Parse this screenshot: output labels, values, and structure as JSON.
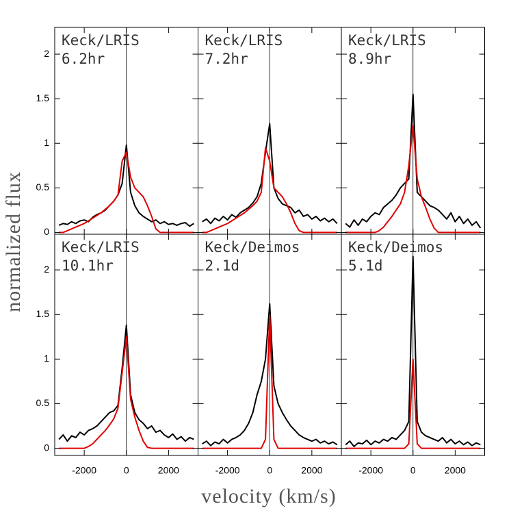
{
  "figure": {
    "xlabel": "velocity (km/s)",
    "ylabel": "normalized flux"
  },
  "chart_data": [
    {
      "type": "line",
      "title": "Keck/LRIS",
      "subtitle": "6.2hr",
      "x": [
        -3200,
        -3000,
        -2800,
        -2600,
        -2400,
        -2200,
        -2000,
        -1800,
        -1600,
        -1400,
        -1200,
        -1000,
        -800,
        -600,
        -400,
        -200,
        0,
        200,
        400,
        600,
        800,
        1000,
        1200,
        1400,
        1600,
        1800,
        2000,
        2200,
        2400,
        2600,
        2800,
        3000,
        3200
      ],
      "xlim": [
        -3400,
        3400
      ],
      "xticks": [
        -2000,
        0,
        2000
      ],
      "ylim": [
        -0.02,
        2.3
      ],
      "yticks": [
        0,
        0.5,
        1,
        1.5,
        2
      ],
      "series": [
        {
          "color": "#000000",
          "values": [
            0.08,
            0.1,
            0.09,
            0.12,
            0.1,
            0.13,
            0.14,
            0.12,
            0.17,
            0.2,
            0.22,
            0.25,
            0.3,
            0.35,
            0.42,
            0.55,
            0.98,
            0.45,
            0.3,
            0.22,
            0.18,
            0.15,
            0.12,
            0.14,
            0.1,
            0.12,
            0.09,
            0.1,
            0.08,
            0.1,
            0.11,
            0.07,
            0.1
          ]
        },
        {
          "color": "#e00000",
          "values": [
            0,
            0,
            0.02,
            0.04,
            0.06,
            0.08,
            0.1,
            0.13,
            0.16,
            0.19,
            0.22,
            0.26,
            0.3,
            0.35,
            0.42,
            0.8,
            0.9,
            0.62,
            0.5,
            0.45,
            0.4,
            0.3,
            0.18,
            0.04,
            0,
            0,
            0,
            0,
            0,
            0,
            0,
            0,
            0
          ]
        }
      ]
    },
    {
      "type": "line",
      "title": "Keck/LRIS",
      "subtitle": "7.2hr",
      "x": [
        -3200,
        -3000,
        -2800,
        -2600,
        -2400,
        -2200,
        -2000,
        -1800,
        -1600,
        -1400,
        -1200,
        -1000,
        -800,
        -600,
        -400,
        -200,
        0,
        200,
        400,
        600,
        800,
        1000,
        1200,
        1400,
        1600,
        1800,
        2000,
        2200,
        2400,
        2600,
        2800,
        3000,
        3200
      ],
      "xlim": [
        -3400,
        3400
      ],
      "xticks": [
        -2000,
        0,
        2000
      ],
      "ylim": [
        -0.02,
        2.3
      ],
      "yticks": [
        0,
        0.5,
        1,
        1.5,
        2
      ],
      "series": [
        {
          "color": "#000000",
          "values": [
            0.12,
            0.15,
            0.1,
            0.16,
            0.13,
            0.18,
            0.14,
            0.2,
            0.17,
            0.22,
            0.25,
            0.28,
            0.33,
            0.4,
            0.55,
            0.9,
            1.22,
            0.5,
            0.38,
            0.32,
            0.3,
            0.28,
            0.22,
            0.25,
            0.18,
            0.2,
            0.15,
            0.18,
            0.13,
            0.16,
            0.12,
            0.15,
            0.1
          ]
        },
        {
          "color": "#e00000",
          "values": [
            0,
            0,
            0.02,
            0.04,
            0.06,
            0.08,
            0.1,
            0.13,
            0.16,
            0.19,
            0.22,
            0.26,
            0.3,
            0.35,
            0.45,
            0.95,
            0.8,
            0.5,
            0.45,
            0.4,
            0.32,
            0.22,
            0.1,
            0.02,
            0,
            0,
            0,
            0,
            0,
            0,
            0,
            0,
            0
          ]
        }
      ]
    },
    {
      "type": "line",
      "title": "Keck/LRIS",
      "subtitle": "8.9hr",
      "x": [
        -3200,
        -3000,
        -2800,
        -2600,
        -2400,
        -2200,
        -2000,
        -1800,
        -1600,
        -1400,
        -1200,
        -1000,
        -800,
        -600,
        -400,
        -200,
        0,
        200,
        400,
        600,
        800,
        1000,
        1200,
        1400,
        1600,
        1800,
        2000,
        2200,
        2400,
        2600,
        2800,
        3000,
        3200
      ],
      "xlim": [
        -3400,
        3400
      ],
      "xticks": [
        -2000,
        0,
        2000
      ],
      "ylim": [
        -0.02,
        2.3
      ],
      "yticks": [
        0,
        0.5,
        1,
        1.5,
        2
      ],
      "series": [
        {
          "color": "#000000",
          "values": [
            0.1,
            0.06,
            0.14,
            0.08,
            0.15,
            0.12,
            0.18,
            0.22,
            0.2,
            0.28,
            0.32,
            0.36,
            0.42,
            0.5,
            0.55,
            0.6,
            1.55,
            0.45,
            0.4,
            0.35,
            0.3,
            0.28,
            0.25,
            0.2,
            0.15,
            0.22,
            0.12,
            0.18,
            0.1,
            0.15,
            0.08,
            0.12,
            0.05
          ]
        },
        {
          "color": "#e00000",
          "values": [
            0,
            0,
            0,
            0,
            0,
            0,
            0,
            0,
            0.02,
            0.06,
            0.12,
            0.18,
            0.25,
            0.32,
            0.45,
            0.75,
            1.2,
            0.6,
            0.4,
            0.28,
            0.15,
            0.05,
            0,
            0,
            0,
            0,
            0,
            0,
            0,
            0,
            0,
            0,
            0
          ]
        }
      ]
    },
    {
      "type": "line",
      "title": "Keck/LRIS",
      "subtitle": "10.1hr",
      "x": [
        -3200,
        -3000,
        -2800,
        -2600,
        -2400,
        -2200,
        -2000,
        -1800,
        -1600,
        -1400,
        -1200,
        -1000,
        -800,
        -600,
        -400,
        -200,
        0,
        200,
        400,
        600,
        800,
        1000,
        1200,
        1400,
        1600,
        1800,
        2000,
        2200,
        2400,
        2600,
        2800,
        3000,
        3200
      ],
      "xlim": [
        -3400,
        3400
      ],
      "xticks": [
        -2000,
        0,
        2000
      ],
      "ylim": [
        -0.08,
        2.4
      ],
      "yticks": [
        0,
        0.5,
        1,
        1.5,
        2
      ],
      "series": [
        {
          "color": "#000000",
          "values": [
            0.1,
            0.15,
            0.08,
            0.14,
            0.12,
            0.18,
            0.15,
            0.2,
            0.22,
            0.25,
            0.3,
            0.35,
            0.4,
            0.42,
            0.48,
            0.9,
            1.38,
            0.6,
            0.4,
            0.32,
            0.28,
            0.22,
            0.25,
            0.18,
            0.2,
            0.15,
            0.12,
            0.16,
            0.1,
            0.13,
            0.08,
            0.12,
            0.1
          ]
        },
        {
          "color": "#e00000",
          "values": [
            0,
            0,
            0,
            0,
            0,
            0,
            0,
            0.02,
            0.05,
            0.1,
            0.15,
            0.2,
            0.26,
            0.33,
            0.45,
            0.85,
            1.25,
            0.55,
            0.35,
            0.2,
            0.08,
            0.01,
            0,
            0,
            0,
            0,
            0,
            0,
            0,
            0,
            0,
            0,
            0
          ]
        }
      ]
    },
    {
      "type": "line",
      "title": "Keck/Deimos",
      "subtitle": "2.1d",
      "x": [
        -3200,
        -3000,
        -2800,
        -2600,
        -2400,
        -2200,
        -2000,
        -1800,
        -1600,
        -1400,
        -1200,
        -1000,
        -800,
        -600,
        -400,
        -200,
        0,
        200,
        400,
        600,
        800,
        1000,
        1200,
        1400,
        1600,
        1800,
        2000,
        2200,
        2400,
        2600,
        2800,
        3000,
        3200
      ],
      "xlim": [
        -3400,
        3400
      ],
      "xticks": [
        -2000,
        0,
        2000
      ],
      "ylim": [
        -0.08,
        2.4
      ],
      "yticks": [
        0,
        0.5,
        1,
        1.5,
        2
      ],
      "series": [
        {
          "color": "#000000",
          "values": [
            0.05,
            0.08,
            0.03,
            0.07,
            0.05,
            0.1,
            0.06,
            0.1,
            0.12,
            0.15,
            0.2,
            0.28,
            0.4,
            0.6,
            0.75,
            1.0,
            1.62,
            0.7,
            0.5,
            0.4,
            0.32,
            0.25,
            0.2,
            0.15,
            0.12,
            0.1,
            0.08,
            0.1,
            0.06,
            0.08,
            0.05,
            0.07,
            0.04
          ]
        },
        {
          "color": "#e00000",
          "values": [
            0,
            0,
            0,
            0,
            0,
            0,
            0,
            0,
            0,
            0,
            0,
            0,
            0,
            0,
            0,
            0.1,
            1.5,
            0.1,
            0,
            0,
            0,
            0,
            0,
            0,
            0,
            0,
            0,
            0,
            0,
            0,
            0,
            0,
            0
          ]
        }
      ]
    },
    {
      "type": "line",
      "title": "Keck/Deimos",
      "subtitle": "5.1d",
      "x": [
        -3200,
        -3000,
        -2800,
        -2600,
        -2400,
        -2200,
        -2000,
        -1800,
        -1600,
        -1400,
        -1200,
        -1000,
        -800,
        -600,
        -400,
        -200,
        0,
        200,
        400,
        600,
        800,
        1000,
        1200,
        1400,
        1600,
        1800,
        2000,
        2200,
        2400,
        2600,
        2800,
        3000,
        3200
      ],
      "xlim": [
        -3400,
        3400
      ],
      "xticks": [
        -2000,
        0,
        2000
      ],
      "ylim": [
        -0.08,
        2.4
      ],
      "yticks": [
        0,
        0.5,
        1,
        1.5,
        2
      ],
      "series": [
        {
          "color": "#000000",
          "values": [
            0.04,
            0.08,
            0.02,
            0.06,
            0.05,
            0.09,
            0.04,
            0.08,
            0.06,
            0.1,
            0.08,
            0.12,
            0.1,
            0.15,
            0.2,
            0.3,
            2.15,
            0.3,
            0.18,
            0.14,
            0.12,
            0.1,
            0.08,
            0.12,
            0.06,
            0.1,
            0.05,
            0.08,
            0.04,
            0.07,
            0.03,
            0.06,
            0.04
          ]
        },
        {
          "color": "#e00000",
          "values": [
            0,
            0,
            0,
            0,
            0,
            0,
            0,
            0,
            0,
            0,
            0,
            0,
            0,
            0,
            0,
            0.05,
            1.0,
            0.05,
            0,
            0,
            0,
            0,
            0,
            0,
            0,
            0,
            0,
            0,
            0,
            0,
            0,
            0,
            0
          ]
        }
      ]
    }
  ]
}
